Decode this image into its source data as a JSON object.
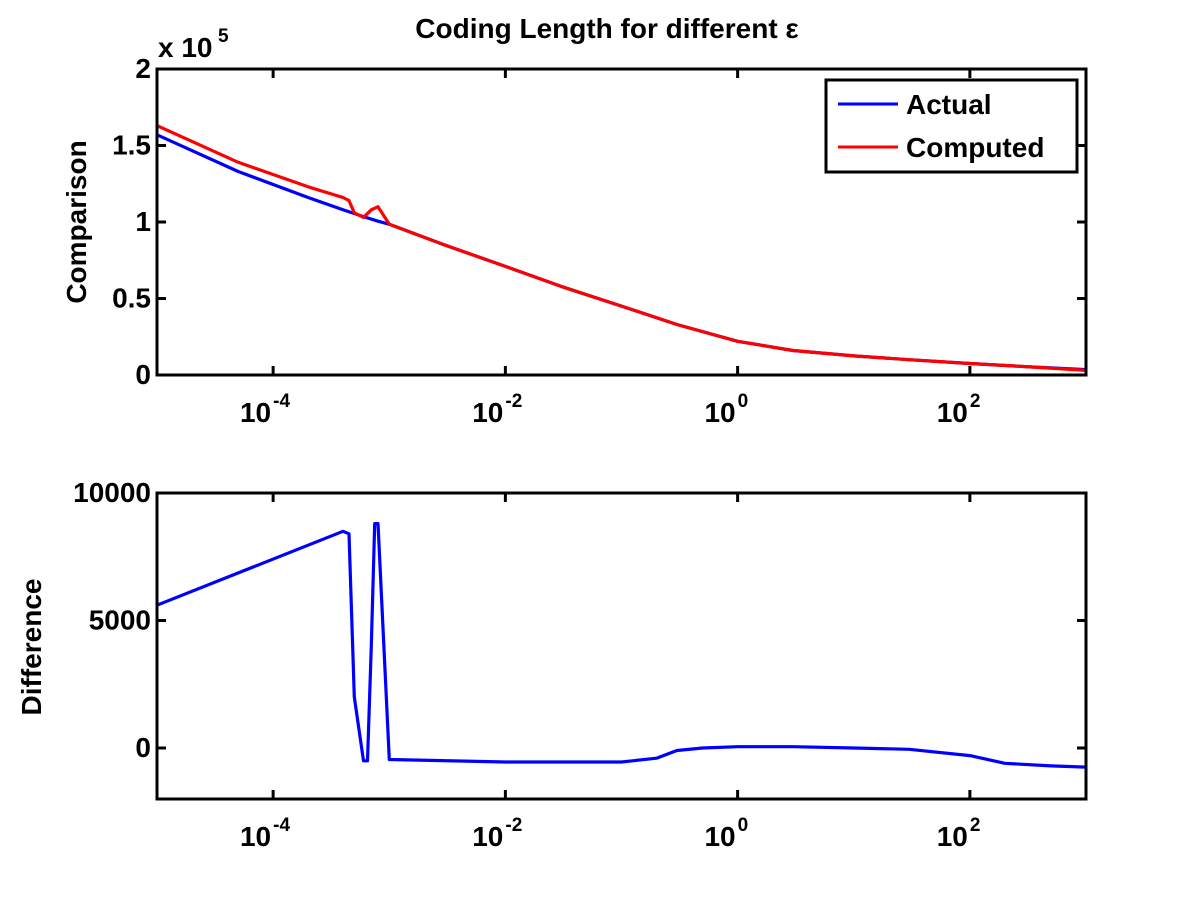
{
  "figure": {
    "title": "Coding Length for different ε"
  },
  "chart_data": [
    {
      "type": "line",
      "title": "Coding Length for different ε",
      "xlabel": "",
      "ylabel": "Comparison",
      "xscale": "log",
      "xlim": [
        1e-05,
        1000
      ],
      "ylim": [
        0,
        200000
      ],
      "y_multiplier_label": "x 10",
      "y_multiplier_exponent": "5",
      "yticks": [
        0,
        0.5,
        1,
        1.5,
        2
      ],
      "ytick_labels": [
        "0",
        "0.5",
        "1",
        "1.5",
        "2"
      ],
      "xtick_values": [
        -4,
        -2,
        0,
        2
      ],
      "xtick_base": "10",
      "xtick_exponents": [
        "-4",
        "-2",
        "0",
        "2"
      ],
      "grid": false,
      "legend_position": "top-right",
      "series": [
        {
          "name": "Actual",
          "color": "#0000ff",
          "x": [
            1e-05,
            5e-05,
            0.0002,
            0.0004,
            0.0006,
            0.0008,
            0.001,
            0.003,
            0.01,
            0.03,
            0.1,
            0.3,
            1,
            3,
            10,
            30,
            100,
            300,
            1000
          ],
          "y": [
            157000,
            133000,
            116000,
            108000,
            103500,
            100500,
            98500,
            85000,
            71000,
            58000,
            45000,
            33000,
            22000,
            16000,
            12500,
            10000,
            7500,
            5500,
            3500
          ]
        },
        {
          "name": "Computed",
          "color": "#ff0000",
          "x": [
            1e-05,
            5e-05,
            0.0002,
            0.0004,
            0.00045,
            0.0005,
            0.0006,
            0.0007,
            0.0008,
            0.001,
            0.003,
            0.01,
            0.03,
            0.1,
            0.3,
            1,
            3,
            10,
            30,
            100,
            300,
            1000
          ],
          "y": [
            163000,
            139000,
            123000,
            116000,
            114000,
            106000,
            103000,
            108000,
            110000,
            98500,
            85000,
            71000,
            58000,
            45000,
            33000,
            22000,
            16000,
            12500,
            10000,
            7500,
            5500,
            3000
          ]
        }
      ]
    },
    {
      "type": "line",
      "title": "",
      "xlabel": "",
      "ylabel": "Difference",
      "xscale": "log",
      "xlim": [
        1e-05,
        1000
      ],
      "ylim": [
        -2000,
        10000
      ],
      "yticks": [
        0,
        5000,
        10000
      ],
      "ytick_labels": [
        "0",
        "5000",
        "10000"
      ],
      "xtick_values": [
        -4,
        -2,
        0,
        2
      ],
      "xtick_base": "10",
      "xtick_exponents": [
        "-4",
        "-2",
        "0",
        "2"
      ],
      "grid": false,
      "series": [
        {
          "color": "#0000ff",
          "x": [
            1e-05,
            0.0004,
            0.00045,
            0.0005,
            0.0006,
            0.00065,
            0.0007,
            0.00075,
            0.0008,
            0.001,
            0.01,
            0.1,
            0.2,
            0.3,
            0.5,
            1,
            3,
            10,
            30,
            100,
            200,
            500,
            1000
          ],
          "y": [
            5600,
            8500,
            8400,
            2000,
            -500,
            -500,
            4000,
            8800,
            8800,
            -450,
            -550,
            -550,
            -400,
            -100,
            0,
            50,
            50,
            0,
            -50,
            -300,
            -600,
            -700,
            -750
          ]
        }
      ]
    }
  ]
}
